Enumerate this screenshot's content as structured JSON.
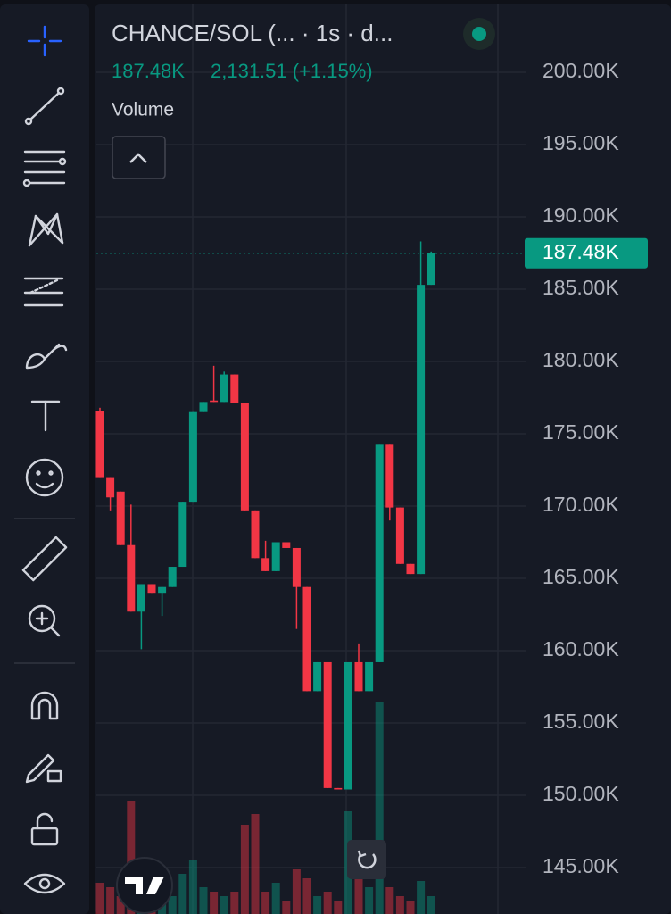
{
  "chart_data": {
    "type": "candlestick",
    "title": "CHANCE/SOL (... · 1s · d...",
    "last_close_label": "187.48K",
    "change_label": "2,131.51 (+1.15%)",
    "volume_label": "Volume",
    "up_color": "#089981",
    "down_color": "#f23645",
    "ylim": [
      141790,
      204690
    ],
    "yticks": [
      {
        "value": 200000,
        "label": "200.00K"
      },
      {
        "value": 195000,
        "label": "195.00K"
      },
      {
        "value": 190000,
        "label": "190.00K"
      },
      {
        "value": 185000,
        "label": "185.00K"
      },
      {
        "value": 180000,
        "label": "180.00K"
      },
      {
        "value": 175000,
        "label": "175.00K"
      },
      {
        "value": 170000,
        "label": "170.00K"
      },
      {
        "value": 165000,
        "label": "165.00K"
      },
      {
        "value": 160000,
        "label": "160.00K"
      },
      {
        "value": 155000,
        "label": "155.00K"
      },
      {
        "value": 150000,
        "label": "150.00K"
      },
      {
        "value": 145000,
        "label": "145.00K"
      }
    ],
    "grid": true,
    "last_price": {
      "value": 187480,
      "label": "187.48K"
    },
    "open": [
      176600,
      172000,
      171000,
      167300,
      162700,
      164600,
      164000,
      164400,
      165800,
      170300,
      176500,
      177300,
      177200,
      179100,
      177100,
      169700,
      166400,
      165500,
      167500,
      167100,
      164400,
      157200,
      159200,
      150500,
      150400,
      159200,
      157200,
      159200,
      174300,
      169900,
      166000,
      165300,
      185300
    ],
    "high": [
      176800,
      172000,
      171000,
      170100,
      164600,
      164600,
      164400,
      165800,
      170300,
      176500,
      177200,
      179700,
      179300,
      179100,
      177100,
      169700,
      167600,
      167500,
      167500,
      167100,
      164400,
      159200,
      159200,
      150500,
      159200,
      160500,
      159200,
      174300,
      174300,
      169900,
      166000,
      188300,
      187600
    ],
    "low": [
      172000,
      169700,
      167300,
      162700,
      160100,
      164000,
      162400,
      164400,
      165800,
      170300,
      176500,
      177200,
      177200,
      177100,
      169700,
      166400,
      165500,
      165500,
      167100,
      161500,
      157200,
      157200,
      150500,
      150400,
      150400,
      157200,
      157200,
      159200,
      169000,
      166000,
      165300,
      165300,
      185300
    ],
    "close": [
      172000,
      170600,
      167300,
      162700,
      164600,
      164000,
      164400,
      165800,
      170300,
      176500,
      177200,
      177200,
      179100,
      177100,
      169700,
      166400,
      165500,
      167500,
      167100,
      164400,
      157200,
      159200,
      150500,
      150400,
      159200,
      157200,
      159200,
      174300,
      169900,
      166000,
      165300,
      185300,
      187480
    ],
    "volume": [
      35,
      30,
      20,
      127,
      15,
      10,
      20,
      20,
      45,
      60,
      30,
      25,
      20,
      25,
      100,
      112,
      25,
      35,
      15,
      50,
      40,
      20,
      25,
      15,
      115,
      40,
      30,
      237,
      30,
      20,
      15,
      37,
      20
    ]
  }
}
